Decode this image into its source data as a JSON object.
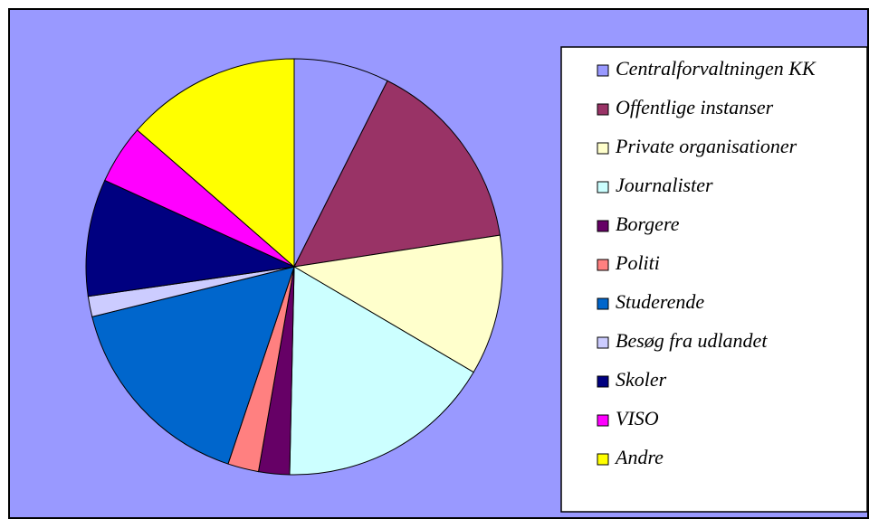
{
  "chart_data": {
    "type": "pie",
    "categories": [
      "Centralforvaltningen KK",
      "Offentlige instanser",
      "Private organisationer",
      "Journalister",
      "Borgere",
      "Politi",
      "Studerende",
      "Besøg fra udlandet",
      "Skoler",
      "VISO",
      "Andre"
    ],
    "values": [
      7.4,
      15.2,
      10.9,
      16.9,
      2.4,
      2.4,
      16.0,
      1.6,
      9.1,
      4.6,
      13.6
    ],
    "colors": [
      "#9999FF",
      "#993366",
      "#FFFFCC",
      "#CCFFFF",
      "#660066",
      "#FF8080",
      "#0066CC",
      "#CCCCFF",
      "#000080",
      "#FF00FF",
      "#FFFF00"
    ],
    "legend": "right"
  }
}
